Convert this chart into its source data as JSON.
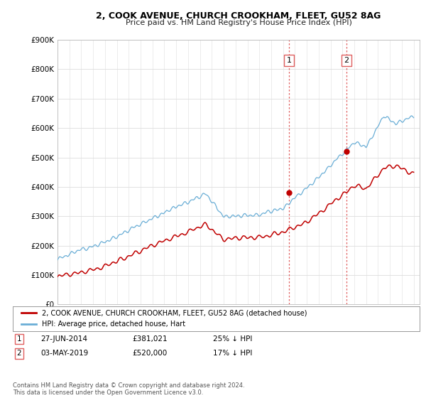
{
  "title_line1": "2, COOK AVENUE, CHURCH CROOKHAM, FLEET, GU52 8AG",
  "title_line2": "Price paid vs. HM Land Registry's House Price Index (HPI)",
  "ylim": [
    0,
    900000
  ],
  "yticks": [
    0,
    100000,
    200000,
    300000,
    400000,
    500000,
    600000,
    700000,
    800000,
    900000
  ],
  "ytick_labels": [
    "£0",
    "£100K",
    "£200K",
    "£300K",
    "£400K",
    "£500K",
    "£600K",
    "£700K",
    "£800K",
    "£900K"
  ],
  "xlim_start": 1995,
  "xlim_end": 2025.5,
  "sale1_date_x": 2014.49,
  "sale1_price": 381021,
  "sale1_label": "1",
  "sale2_date_x": 2019.34,
  "sale2_price": 520000,
  "sale2_label": "2",
  "hpi_color": "#6aaed6",
  "price_color": "#c00000",
  "sale_marker_color": "#c00000",
  "vline_color": "#e06060",
  "legend_house_label": "2, COOK AVENUE, CHURCH CROOKHAM, FLEET, GU52 8AG (detached house)",
  "legend_hpi_label": "HPI: Average price, detached house, Hart",
  "table_row1": [
    "1",
    "27-JUN-2014",
    "£381,021",
    "25% ↓ HPI"
  ],
  "table_row2": [
    "2",
    "03-MAY-2019",
    "£520,000",
    "17% ↓ HPI"
  ],
  "footnote": "Contains HM Land Registry data © Crown copyright and database right 2024.\nThis data is licensed under the Open Government Licence v3.0.",
  "background_color": "#ffffff",
  "grid_color": "#dddddd"
}
